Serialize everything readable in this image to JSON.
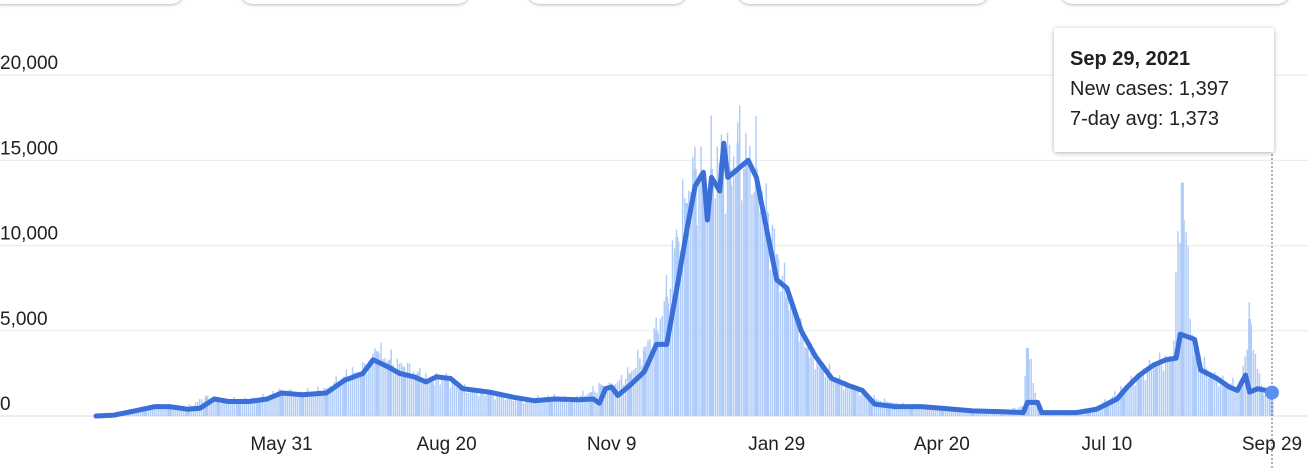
{
  "top_chips": [
    {},
    {},
    {},
    {},
    {}
  ],
  "tooltip": {
    "date": "Sep 29, 2021",
    "new_cases": "New cases: 1,397",
    "avg": "7-day avg: 1,373"
  },
  "chart_data": {
    "type": "bar",
    "title": "",
    "xlabel": "",
    "ylabel": "",
    "ylim": [
      0,
      23000
    ],
    "x_range": [
      "2020-03-01",
      "2021-09-29"
    ],
    "grid": true,
    "y_ticks": [
      {
        "value": 0,
        "label": "0"
      },
      {
        "value": 5000,
        "label": "5,000"
      },
      {
        "value": 10000,
        "label": "10,000"
      },
      {
        "value": 15000,
        "label": "15,000"
      },
      {
        "value": 20000,
        "label": "20,000"
      }
    ],
    "x_ticks": [
      {
        "date": "2020-05-31",
        "label": "May 31"
      },
      {
        "date": "2020-08-20",
        "label": "Aug 20"
      },
      {
        "date": "2020-11-09",
        "label": "Nov 9"
      },
      {
        "date": "2021-01-29",
        "label": "Jan 29"
      },
      {
        "date": "2021-04-20",
        "label": "Apr 20"
      },
      {
        "date": "2021-07-10",
        "label": "Jul 10"
      },
      {
        "date": "2021-09-29",
        "label": "Sep 29"
      }
    ],
    "series": [
      {
        "name": "New cases",
        "style": "bars",
        "color": "#aecbfa",
        "points": [
          [
            "2020-03-01",
            20
          ],
          [
            "2020-03-12",
            120
          ],
          [
            "2020-03-25",
            450
          ],
          [
            "2020-04-06",
            600
          ],
          [
            "2020-04-15",
            500
          ],
          [
            "2020-04-24",
            1100
          ],
          [
            "2020-04-30",
            850
          ],
          [
            "2020-05-10",
            950
          ],
          [
            "2020-05-20",
            1000
          ],
          [
            "2020-05-31",
            1450
          ],
          [
            "2020-06-10",
            1300
          ],
          [
            "2020-06-22",
            1550
          ],
          [
            "2020-07-01",
            2300
          ],
          [
            "2020-07-10",
            2700
          ],
          [
            "2020-07-17",
            3800
          ],
          [
            "2020-07-23",
            3300
          ],
          [
            "2020-07-30",
            2900
          ],
          [
            "2020-08-06",
            2500
          ],
          [
            "2020-08-13",
            2000
          ],
          [
            "2020-08-20",
            2300
          ],
          [
            "2020-08-27",
            1600
          ],
          [
            "2020-09-10",
            1300
          ],
          [
            "2020-09-25",
            900
          ],
          [
            "2020-10-10",
            1100
          ],
          [
            "2020-10-20",
            1000
          ],
          [
            "2020-10-30",
            1400
          ],
          [
            "2020-11-04",
            1800
          ],
          [
            "2020-11-09",
            1700
          ],
          [
            "2020-11-18",
            2500
          ],
          [
            "2020-11-25",
            3800
          ],
          [
            "2020-12-01",
            5000
          ],
          [
            "2020-12-06",
            7000
          ],
          [
            "2020-12-11",
            10500
          ],
          [
            "2020-12-16",
            12500
          ],
          [
            "2020-12-20",
            14500
          ],
          [
            "2020-12-24",
            13500
          ],
          [
            "2020-12-28",
            14500
          ],
          [
            "2021-01-02",
            15000
          ],
          [
            "2021-01-06",
            14500
          ],
          [
            "2021-01-10",
            16000
          ],
          [
            "2021-01-14",
            15000
          ],
          [
            "2021-01-19",
            14500
          ],
          [
            "2021-01-24",
            12000
          ],
          [
            "2021-01-29",
            9500
          ],
          [
            "2021-02-03",
            7000
          ],
          [
            "2021-02-08",
            5500
          ],
          [
            "2021-02-13",
            4000
          ],
          [
            "2021-02-20",
            3000
          ],
          [
            "2021-02-28",
            2100
          ],
          [
            "2021-03-08",
            1600
          ],
          [
            "2021-03-16",
            1100
          ],
          [
            "2021-03-25",
            800
          ],
          [
            "2021-04-05",
            600
          ],
          [
            "2021-04-20",
            500
          ],
          [
            "2021-05-05",
            380
          ],
          [
            "2021-05-20",
            300
          ],
          [
            "2021-05-30",
            550
          ],
          [
            "2021-06-01",
            4000
          ],
          [
            "2021-06-07",
            250
          ],
          [
            "2021-06-20",
            150
          ],
          [
            "2021-07-01",
            300
          ],
          [
            "2021-07-10",
            900
          ],
          [
            "2021-07-18",
            1600
          ],
          [
            "2021-07-26",
            2400
          ],
          [
            "2021-08-03",
            3000
          ],
          [
            "2021-08-11",
            3400
          ],
          [
            "2021-08-16",
            13700
          ],
          [
            "2021-08-22",
            3500
          ],
          [
            "2021-08-30",
            2500
          ],
          [
            "2021-09-06",
            2000
          ],
          [
            "2021-09-14",
            1700
          ],
          [
            "2021-09-18",
            5700
          ],
          [
            "2021-09-24",
            1600
          ],
          [
            "2021-09-29",
            1397
          ]
        ]
      },
      {
        "name": "7-day avg",
        "style": "line",
        "color": "#3a6fd8",
        "points": [
          [
            "2020-03-01",
            0
          ],
          [
            "2020-03-10",
            50
          ],
          [
            "2020-03-20",
            300
          ],
          [
            "2020-03-30",
            550
          ],
          [
            "2020-04-06",
            550
          ],
          [
            "2020-04-15",
            400
          ],
          [
            "2020-04-21",
            450
          ],
          [
            "2020-04-28",
            1000
          ],
          [
            "2020-05-05",
            850
          ],
          [
            "2020-05-15",
            850
          ],
          [
            "2020-05-24",
            1000
          ],
          [
            "2020-05-31",
            1350
          ],
          [
            "2020-06-10",
            1250
          ],
          [
            "2020-06-22",
            1350
          ],
          [
            "2020-07-01",
            2100
          ],
          [
            "2020-07-10",
            2500
          ],
          [
            "2020-07-15",
            3300
          ],
          [
            "2020-07-22",
            2900
          ],
          [
            "2020-07-28",
            2500
          ],
          [
            "2020-08-04",
            2300
          ],
          [
            "2020-08-10",
            2000
          ],
          [
            "2020-08-15",
            2300
          ],
          [
            "2020-08-22",
            2200
          ],
          [
            "2020-08-28",
            1600
          ],
          [
            "2020-09-10",
            1400
          ],
          [
            "2020-09-22",
            1100
          ],
          [
            "2020-10-02",
            900
          ],
          [
            "2020-10-12",
            1000
          ],
          [
            "2020-10-24",
            950
          ],
          [
            "2020-10-31",
            1000
          ],
          [
            "2020-11-03",
            750
          ],
          [
            "2020-11-06",
            1600
          ],
          [
            "2020-11-09",
            1700
          ],
          [
            "2020-11-12",
            1200
          ],
          [
            "2020-11-18",
            1800
          ],
          [
            "2020-11-25",
            2600
          ],
          [
            "2020-12-01",
            4200
          ],
          [
            "2020-12-06",
            4200
          ],
          [
            "2020-12-11",
            7500
          ],
          [
            "2020-12-16",
            11000
          ],
          [
            "2020-12-20",
            13500
          ],
          [
            "2020-12-24",
            14300
          ],
          [
            "2020-12-26",
            11500
          ],
          [
            "2020-12-28",
            14000
          ],
          [
            "2021-01-01",
            13200
          ],
          [
            "2021-01-03",
            16000
          ],
          [
            "2021-01-05",
            14000
          ],
          [
            "2021-01-10",
            14500
          ],
          [
            "2021-01-15",
            15000
          ],
          [
            "2021-01-19",
            14000
          ],
          [
            "2021-01-24",
            11000
          ],
          [
            "2021-01-29",
            8000
          ],
          [
            "2021-02-03",
            7500
          ],
          [
            "2021-02-10",
            5000
          ],
          [
            "2021-02-17",
            3500
          ],
          [
            "2021-02-25",
            2200
          ],
          [
            "2021-03-05",
            1800
          ],
          [
            "2021-03-12",
            1500
          ],
          [
            "2021-03-18",
            700
          ],
          [
            "2021-03-28",
            550
          ],
          [
            "2021-04-10",
            550
          ],
          [
            "2021-04-20",
            450
          ],
          [
            "2021-05-05",
            300
          ],
          [
            "2021-05-20",
            250
          ],
          [
            "2021-05-30",
            200
          ],
          [
            "2021-06-01",
            800
          ],
          [
            "2021-06-06",
            800
          ],
          [
            "2021-06-08",
            200
          ],
          [
            "2021-06-25",
            200
          ],
          [
            "2021-07-05",
            400
          ],
          [
            "2021-07-10",
            700
          ],
          [
            "2021-07-15",
            1000
          ],
          [
            "2021-07-20",
            1700
          ],
          [
            "2021-07-26",
            2400
          ],
          [
            "2021-08-02",
            3000
          ],
          [
            "2021-08-08",
            3300
          ],
          [
            "2021-08-13",
            3400
          ],
          [
            "2021-08-15",
            4800
          ],
          [
            "2021-08-22",
            4500
          ],
          [
            "2021-08-25",
            2700
          ],
          [
            "2021-09-02",
            2200
          ],
          [
            "2021-09-08",
            1700
          ],
          [
            "2021-09-12",
            1500
          ],
          [
            "2021-09-16",
            2400
          ],
          [
            "2021-09-18",
            1400
          ],
          [
            "2021-09-22",
            1600
          ],
          [
            "2021-09-26",
            1500
          ],
          [
            "2021-09-29",
            1373
          ]
        ]
      }
    ]
  }
}
